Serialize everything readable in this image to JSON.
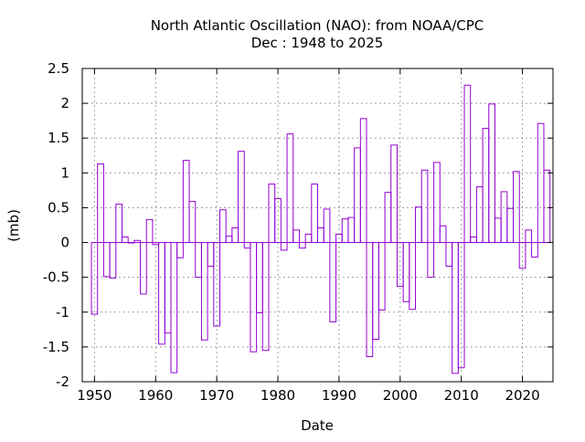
{
  "chart_data": {
    "type": "bar",
    "title": "North Atlantic Oscillation (NAO): from NOAA/CPC",
    "subtitle": "Dec : 1948 to 2025",
    "xlabel": "Date",
    "ylabel": "(mb)",
    "xlim": [
      1948,
      2025
    ],
    "ylim": [
      -2,
      2.5
    ],
    "grid": true,
    "series_color": "#9400d3",
    "xticks": [
      1950,
      1960,
      1970,
      1980,
      1990,
      2000,
      2010,
      2020
    ],
    "yticks": [
      -2,
      -1.5,
      -1,
      -0.5,
      0,
      0.5,
      1,
      1.5,
      2,
      2.5
    ],
    "x": [
      1950,
      1951,
      1952,
      1953,
      1954,
      1955,
      1956,
      1957,
      1958,
      1959,
      1960,
      1961,
      1962,
      1963,
      1964,
      1965,
      1966,
      1967,
      1968,
      1969,
      1970,
      1971,
      1972,
      1973,
      1974,
      1975,
      1976,
      1977,
      1978,
      1979,
      1980,
      1981,
      1982,
      1983,
      1984,
      1985,
      1986,
      1987,
      1988,
      1989,
      1990,
      1991,
      1992,
      1993,
      1994,
      1995,
      1996,
      1997,
      1998,
      1999,
      2000,
      2001,
      2002,
      2003,
      2004,
      2005,
      2006,
      2007,
      2008,
      2009,
      2010,
      2011,
      2012,
      2013,
      2014,
      2015,
      2016,
      2017,
      2018,
      2019,
      2020,
      2021,
      2022,
      2023,
      2024
    ],
    "values": [
      -1.03,
      1.13,
      -0.49,
      -0.51,
      0.55,
      0.08,
      0.0,
      0.03,
      -0.74,
      0.33,
      -0.03,
      -1.46,
      -1.3,
      -1.87,
      -0.22,
      1.18,
      0.59,
      -0.5,
      -1.4,
      -0.34,
      -1.2,
      0.47,
      0.09,
      0.21,
      1.31,
      -0.08,
      -1.57,
      -1.01,
      -1.55,
      0.84,
      0.63,
      -0.11,
      1.56,
      0.18,
      -0.08,
      0.12,
      0.84,
      0.21,
      0.48,
      -1.14,
      0.12,
      0.34,
      0.36,
      1.36,
      1.78,
      -1.64,
      -1.39,
      -0.97,
      0.72,
      1.4,
      -0.63,
      -0.85,
      -0.96,
      0.51,
      1.04,
      -0.5,
      1.15,
      0.24,
      -0.34,
      -1.88,
      -1.8,
      2.26,
      0.08,
      0.8,
      1.64,
      1.99,
      0.35,
      0.73,
      0.49,
      1.02,
      -0.37,
      0.18,
      -0.21,
      1.71,
      1.04
    ]
  }
}
